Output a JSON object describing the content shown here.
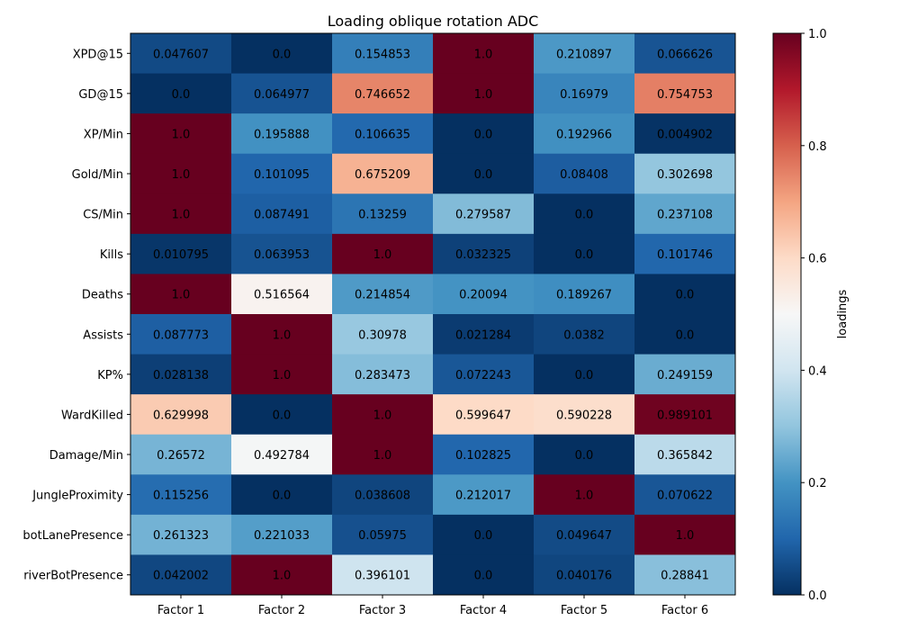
{
  "chart_data": {
    "type": "heatmap",
    "title": "Loading oblique rotation ADC",
    "xlabel": "",
    "ylabel": "",
    "columns": [
      "Factor 1",
      "Factor 2",
      "Factor 3",
      "Factor 4",
      "Factor 5",
      "Factor 6"
    ],
    "rows": [
      "XPD@15",
      "GD@15",
      "XP/Min",
      "Gold/Min",
      "CS/Min",
      "Kills",
      "Deaths",
      "Assists",
      "KP%",
      "WardKilled",
      "Damage/Min",
      "JungleProximity",
      "botLanePresence",
      "riverBotPresence"
    ],
    "values": [
      [
        0.047607,
        0.0,
        0.154853,
        1.0,
        0.210897,
        0.066626
      ],
      [
        0.0,
        0.064977,
        0.746652,
        1.0,
        0.16979,
        0.754753
      ],
      [
        1.0,
        0.195888,
        0.106635,
        0.0,
        0.192966,
        0.004902
      ],
      [
        1.0,
        0.101095,
        0.675209,
        0.0,
        0.08408,
        0.302698
      ],
      [
        1.0,
        0.087491,
        0.13259,
        0.279587,
        0.0,
        0.237108
      ],
      [
        0.010795,
        0.063953,
        1.0,
        0.032325,
        0.0,
        0.101746
      ],
      [
        1.0,
        0.516564,
        0.214854,
        0.20094,
        0.189267,
        0.0
      ],
      [
        0.087773,
        1.0,
        0.30978,
        0.021284,
        0.0382,
        0.0
      ],
      [
        0.028138,
        1.0,
        0.283473,
        0.072243,
        0.0,
        0.249159
      ],
      [
        0.629998,
        0.0,
        1.0,
        0.599647,
        0.590228,
        0.989101
      ],
      [
        0.26572,
        0.492784,
        1.0,
        0.102825,
        0.0,
        0.365842
      ],
      [
        0.115256,
        0.0,
        0.038608,
        0.212017,
        1.0,
        0.070622
      ],
      [
        0.261323,
        0.221033,
        0.05975,
        0.0,
        0.049647,
        1.0
      ],
      [
        0.042002,
        1.0,
        0.396101,
        0.0,
        0.040176,
        0.28841
      ]
    ],
    "cell_labels": [
      [
        "0.047607",
        "0.0",
        "0.154853",
        "1.0",
        "0.210897",
        "0.066626"
      ],
      [
        "0.0",
        "0.064977",
        "0.746652",
        "1.0",
        "0.16979",
        "0.754753"
      ],
      [
        "1.0",
        "0.195888",
        "0.106635",
        "0.0",
        "0.192966",
        "0.004902"
      ],
      [
        "1.0",
        "0.101095",
        "0.675209",
        "0.0",
        "0.08408",
        "0.302698"
      ],
      [
        "1.0",
        "0.087491",
        "0.13259",
        "0.279587",
        "0.0",
        "0.237108"
      ],
      [
        "0.010795",
        "0.063953",
        "1.0",
        "0.032325",
        "0.0",
        "0.101746"
      ],
      [
        "1.0",
        "0.516564",
        "0.214854",
        "0.20094",
        "0.189267",
        "0.0"
      ],
      [
        "0.087773",
        "1.0",
        "0.30978",
        "0.021284",
        "0.0382",
        "0.0"
      ],
      [
        "0.028138",
        "1.0",
        "0.283473",
        "0.072243",
        "0.0",
        "0.249159"
      ],
      [
        "0.629998",
        "0.0",
        "1.0",
        "0.599647",
        "0.590228",
        "0.989101"
      ],
      [
        "0.26572",
        "0.492784",
        "1.0",
        "0.102825",
        "0.0",
        "0.365842"
      ],
      [
        "0.115256",
        "0.0",
        "0.038608",
        "0.212017",
        "1.0",
        "0.070622"
      ],
      [
        "0.261323",
        "0.221033",
        "0.05975",
        "0.0",
        "0.049647",
        "1.0"
      ],
      [
        "0.042002",
        "1.0",
        "0.396101",
        "0.0",
        "0.040176",
        "0.28841"
      ]
    ],
    "colormap": "RdBu_r",
    "colorbar": {
      "label": "loadings",
      "range": [
        0.0,
        1.0
      ],
      "ticks": [
        0.0,
        0.2,
        0.4,
        0.6,
        0.8,
        1.0
      ],
      "tick_labels": [
        "0.0",
        "0.2",
        "0.4",
        "0.6",
        "0.8",
        "1.0"
      ]
    },
    "grid": false
  }
}
